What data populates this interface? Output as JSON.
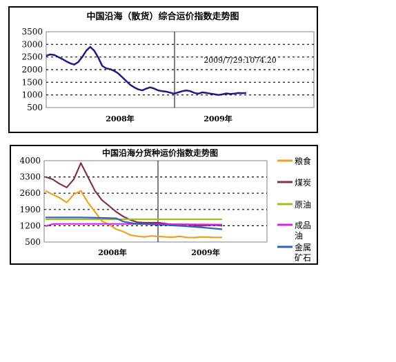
{
  "chart_data": [
    {
      "type": "line",
      "title": "中国沿海（散货）综合运价指数走势图",
      "xlabel": "",
      "ylabel": "",
      "ylim": [
        500,
        3500
      ],
      "yticks": [
        3500,
        3000,
        2500,
        2000,
        1500,
        1000,
        500
      ],
      "x_tick_labels": [
        "2008年",
        "2009年"
      ],
      "annotation": "2009/7/29:1074.20",
      "grid": "dotted horizontal",
      "colors": {
        "line": "#1a1a80",
        "divider": "#000000"
      },
      "series": [
        {
          "name": "",
          "x": [
            0,
            2,
            4,
            6,
            8,
            10,
            12,
            14,
            16,
            18,
            20,
            22,
            24,
            26,
            28,
            30,
            32,
            34,
            36,
            38,
            40,
            42,
            44,
            46,
            48,
            50,
            52,
            54,
            56,
            58,
            60,
            62,
            64,
            66,
            68,
            70,
            72,
            74,
            76,
            78,
            80,
            82,
            84,
            86,
            88,
            90,
            92,
            94,
            96,
            98,
            100
          ],
          "values": [
            2550,
            2600,
            2580,
            2500,
            2420,
            2330,
            2250,
            2200,
            2300,
            2500,
            2750,
            2900,
            2750,
            2480,
            2150,
            2050,
            2020,
            1950,
            1850,
            1700,
            1550,
            1400,
            1300,
            1220,
            1180,
            1250,
            1300,
            1250,
            1180,
            1150,
            1130,
            1090,
            1050,
            1100,
            1150,
            1180,
            1150,
            1080,
            1050,
            1100,
            1080,
            1050,
            1030,
            1000,
            1020,
            1060,
            1040,
            1050,
            1074.2,
            1070,
            1074.2
          ]
        }
      ]
    },
    {
      "type": "line",
      "title": "中国沿海分货种运价指数走势图",
      "xlabel": "",
      "ylabel": "",
      "ylim": [
        500,
        4000
      ],
      "yticks": [
        4000,
        3300,
        2600,
        1900,
        1200,
        500
      ],
      "x_tick_labels": [
        "2008年",
        "2009年"
      ],
      "grid": "dotted horizontal",
      "legend_position": "right",
      "series": [
        {
          "name": "粮食",
          "color": "#f0a020",
          "x": [
            0,
            4,
            8,
            12,
            16,
            20,
            24,
            28,
            32,
            36,
            40,
            44,
            48,
            52,
            56,
            60,
            64,
            68,
            72,
            76,
            80,
            84,
            88,
            92,
            96,
            100
          ],
          "values": [
            2700,
            2550,
            2400,
            2200,
            2550,
            2700,
            2200,
            1800,
            1400,
            1250,
            1050,
            950,
            800,
            750,
            720,
            760,
            740,
            720,
            710,
            740,
            700,
            690,
            720,
            710,
            700,
            700
          ]
        },
        {
          "name": "煤炭",
          "color": "#803050",
          "x": [
            0,
            4,
            8,
            12,
            16,
            20,
            24,
            28,
            32,
            36,
            40,
            44,
            48,
            52,
            56,
            60,
            64,
            68,
            72,
            76,
            80,
            84,
            88,
            92,
            96,
            100
          ],
          "values": [
            3300,
            3200,
            3000,
            2850,
            3200,
            3900,
            3300,
            2700,
            2300,
            2050,
            1800,
            1600,
            1450,
            1350,
            1330,
            1330,
            1330,
            1290,
            1250,
            1230,
            1260,
            1220,
            1200,
            1220,
            1230,
            1200
          ]
        },
        {
          "name": "原油",
          "color": "#a0c020",
          "x": [
            0,
            20,
            40,
            60,
            80,
            100
          ],
          "values": [
            1480,
            1480,
            1480,
            1480,
            1480,
            1480
          ]
        },
        {
          "name": "成品油",
          "color": "#e020e0",
          "x": [
            0,
            4,
            8,
            20,
            40,
            60,
            80,
            100
          ],
          "values": [
            1180,
            1270,
            1280,
            1280,
            1280,
            1270,
            1260,
            1250
          ]
        },
        {
          "name": "金属矿石",
          "color": "#3060c0",
          "x": [
            0,
            10,
            20,
            30,
            40,
            44,
            50,
            60,
            70,
            80,
            90,
            100
          ],
          "values": [
            1560,
            1560,
            1560,
            1540,
            1520,
            1380,
            1300,
            1260,
            1220,
            1180,
            1120,
            1050
          ]
        }
      ]
    }
  ]
}
